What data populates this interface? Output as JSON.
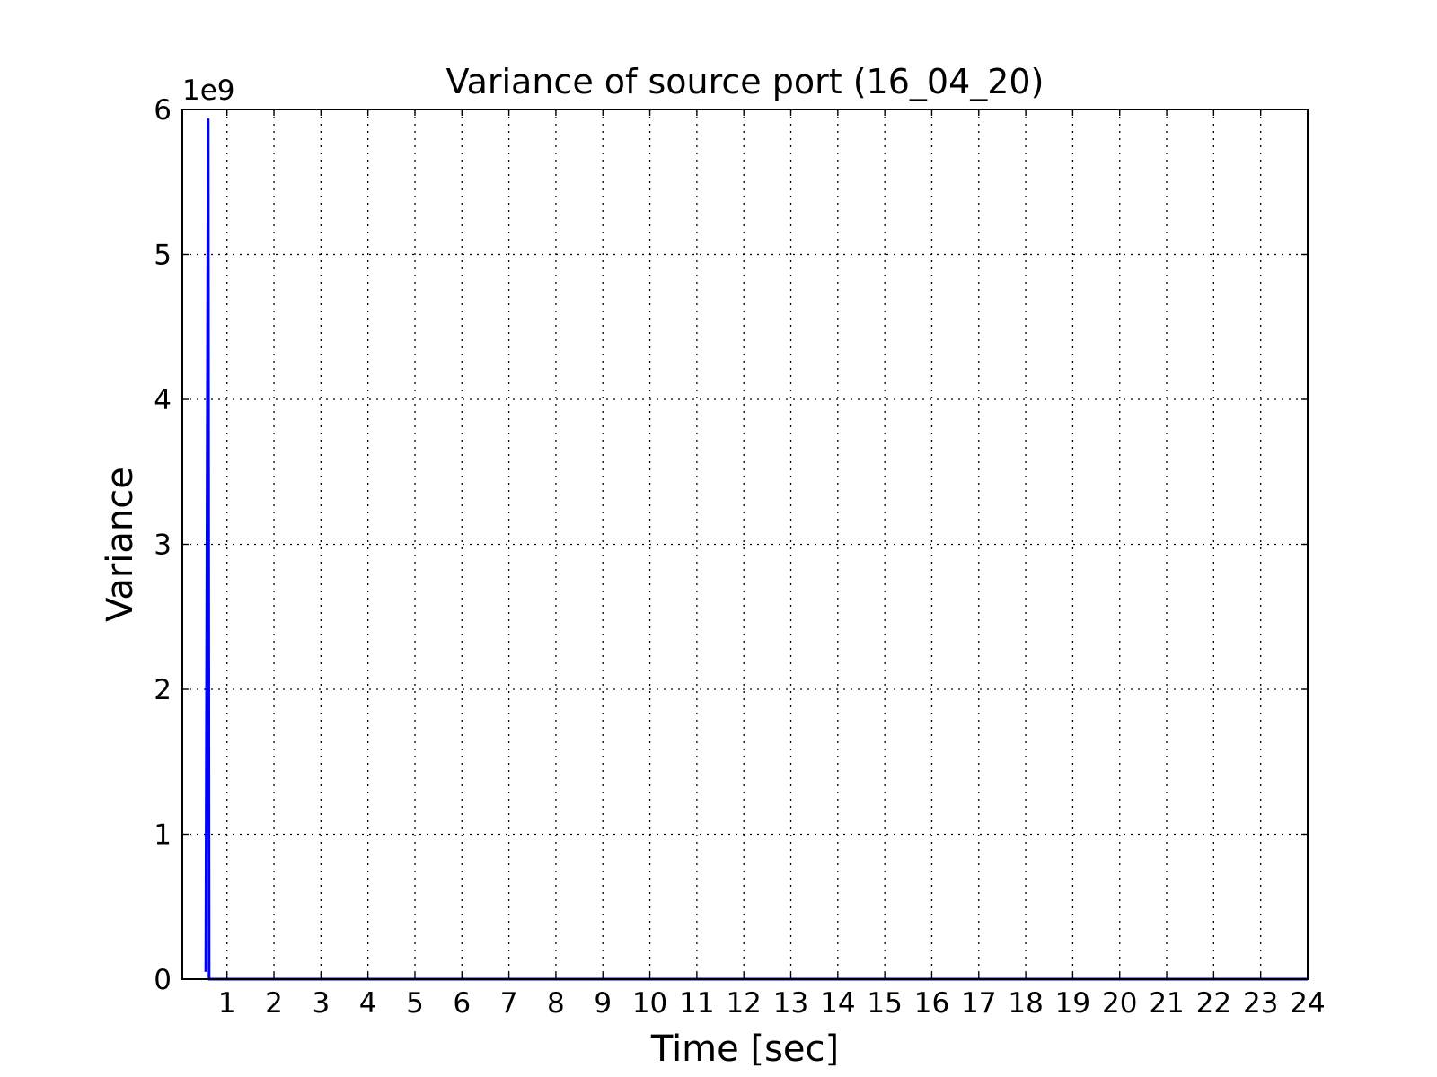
{
  "chart_data": {
    "type": "line",
    "title": "Variance of source port (16_04_20)",
    "xlabel": "Time [sec]",
    "ylabel": "Variance",
    "y_multiplier_label": "1e9",
    "xlim": [
      0.05,
      24
    ],
    "ylim": [
      0,
      6
    ],
    "x_ticks": [
      1,
      2,
      3,
      4,
      5,
      6,
      7,
      8,
      9,
      10,
      11,
      12,
      13,
      14,
      15,
      16,
      17,
      18,
      19,
      20,
      21,
      22,
      23,
      24
    ],
    "x_tick_labels": [
      "1",
      "2",
      "3",
      "4",
      "5",
      "6",
      "7",
      "8",
      "9",
      "10",
      "11",
      "12",
      "13",
      "14",
      "15",
      "16",
      "17",
      "18",
      "19",
      "20",
      "21",
      "22",
      "23",
      "24"
    ],
    "y_ticks": [
      0,
      1,
      2,
      3,
      4,
      5,
      6
    ],
    "y_tick_labels": [
      "0",
      "1",
      "2",
      "3",
      "4",
      "5",
      "6"
    ],
    "grid": true,
    "series": [
      {
        "color": "#0000ff",
        "x": [
          0.55,
          0.6,
          0.62,
          1,
          2,
          4,
          8,
          12,
          16,
          20,
          24
        ],
        "y": [
          0.05,
          5.93,
          0,
          0,
          0,
          0,
          0,
          0,
          0,
          0,
          0
        ]
      }
    ]
  }
}
